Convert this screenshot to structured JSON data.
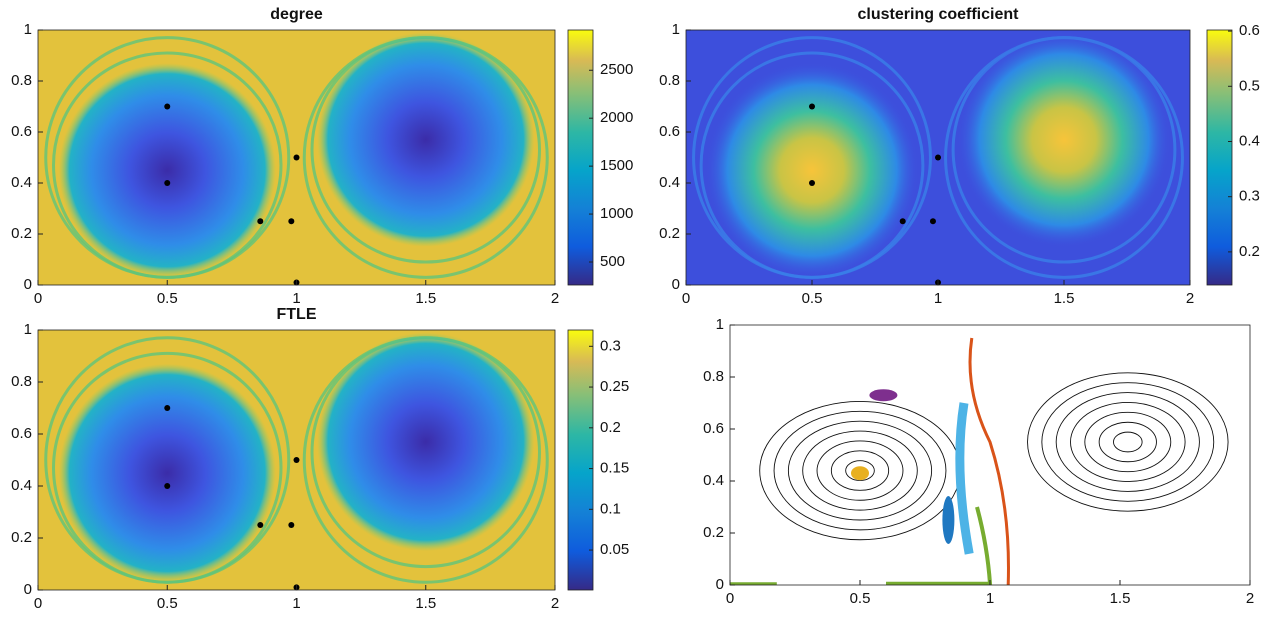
{
  "chart_data": [
    {
      "type": "heatmap",
      "title": "degree",
      "style": "degree",
      "xlim": [
        0,
        2
      ],
      "ylim": [
        0,
        1
      ],
      "xticks": [
        0,
        0.5,
        1,
        1.5,
        2
      ],
      "yticks": [
        0,
        0.2,
        0.4,
        0.6,
        0.8,
        1
      ],
      "clim": [
        260,
        2920
      ],
      "cticks": [
        500,
        1000,
        1500,
        2000,
        2500
      ],
      "points": {
        "x": [
          0.5,
          0.5,
          1,
          0.86,
          0.98,
          1
        ],
        "y": [
          0.7,
          0.4,
          0.5,
          0.25,
          0.25,
          0.01
        ]
      }
    },
    {
      "type": "heatmap",
      "title": "clustering coefficient",
      "style": "clustering",
      "xlim": [
        0,
        2
      ],
      "ylim": [
        0,
        1
      ],
      "xticks": [
        0,
        0.5,
        1,
        1.5,
        2
      ],
      "yticks": [
        0,
        0.2,
        0.4,
        0.6,
        0.8,
        1
      ],
      "clim": [
        0.14,
        0.602
      ],
      "cticks": [
        0.2,
        0.3,
        0.4,
        0.5,
        0.6
      ],
      "points": {
        "x": [
          0.5,
          0.5,
          1,
          0.86,
          0.98,
          1
        ],
        "y": [
          0.7,
          0.4,
          0.5,
          0.25,
          0.25,
          0.01
        ]
      }
    },
    {
      "type": "heatmap",
      "title": "FTLE",
      "style": "degree",
      "xlim": [
        0,
        2
      ],
      "ylim": [
        0,
        1
      ],
      "xticks": [
        0,
        0.5,
        1,
        1.5,
        2
      ],
      "yticks": [
        0,
        0.2,
        0.4,
        0.6,
        0.8,
        1
      ],
      "clim": [
        0.001,
        0.32
      ],
      "cticks": [
        0.05,
        0.1,
        0.15,
        0.2,
        0.25,
        0.3
      ],
      "points": {
        "x": [
          0.5,
          0.5,
          1,
          0.86,
          0.98,
          1
        ],
        "y": [
          0.7,
          0.4,
          0.5,
          0.25,
          0.25,
          0.01
        ]
      }
    },
    {
      "type": "contour",
      "xlim": [
        0,
        2
      ],
      "ylim": [
        0,
        1
      ],
      "xticks": [
        0,
        0.5,
        1,
        1.5,
        2
      ],
      "yticks": [
        0,
        0.2,
        0.4,
        0.6,
        0.8,
        1
      ]
    }
  ]
}
